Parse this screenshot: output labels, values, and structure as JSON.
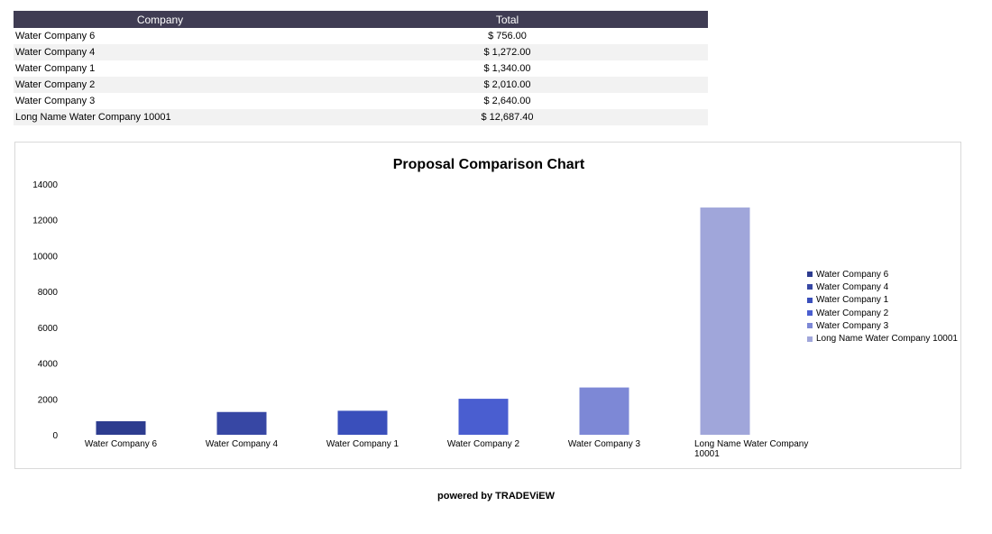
{
  "table": {
    "headers": [
      "Company",
      "Total"
    ],
    "rows": [
      {
        "company": "Water Company 6",
        "total": "$ 756.00"
      },
      {
        "company": "Water Company 4",
        "total": "$ 1,272.00"
      },
      {
        "company": "Water Company 1",
        "total": "$ 1,340.00"
      },
      {
        "company": "Water Company 2",
        "total": "$ 2,010.00"
      },
      {
        "company": "Water Company 3",
        "total": "$ 2,640.00"
      },
      {
        "company": "Long Name Water Company 10001",
        "total": "$ 12,687.40"
      }
    ]
  },
  "chart_data": {
    "type": "bar",
    "title": "Proposal Comparison Chart",
    "xlabel": "",
    "ylabel": "",
    "categories": [
      "Water Company 6",
      "Water Company 4",
      "Water Company 1",
      "Water Company 2",
      "Water Company 3",
      "Long Name Water Company 10001"
    ],
    "values": [
      756,
      1272,
      1340,
      2010,
      2640,
      12687.4
    ],
    "colors": [
      "#2d3c8f",
      "#3747a4",
      "#3a4fbb",
      "#4a5ed0",
      "#7d88d6",
      "#a0a6da"
    ],
    "ylim": [
      0,
      14000
    ],
    "yticks": [
      0,
      2000,
      4000,
      6000,
      8000,
      10000,
      12000,
      14000
    ],
    "grid": false,
    "legend_position": "right"
  },
  "footer": {
    "text": "powered by TRADEViEW"
  }
}
